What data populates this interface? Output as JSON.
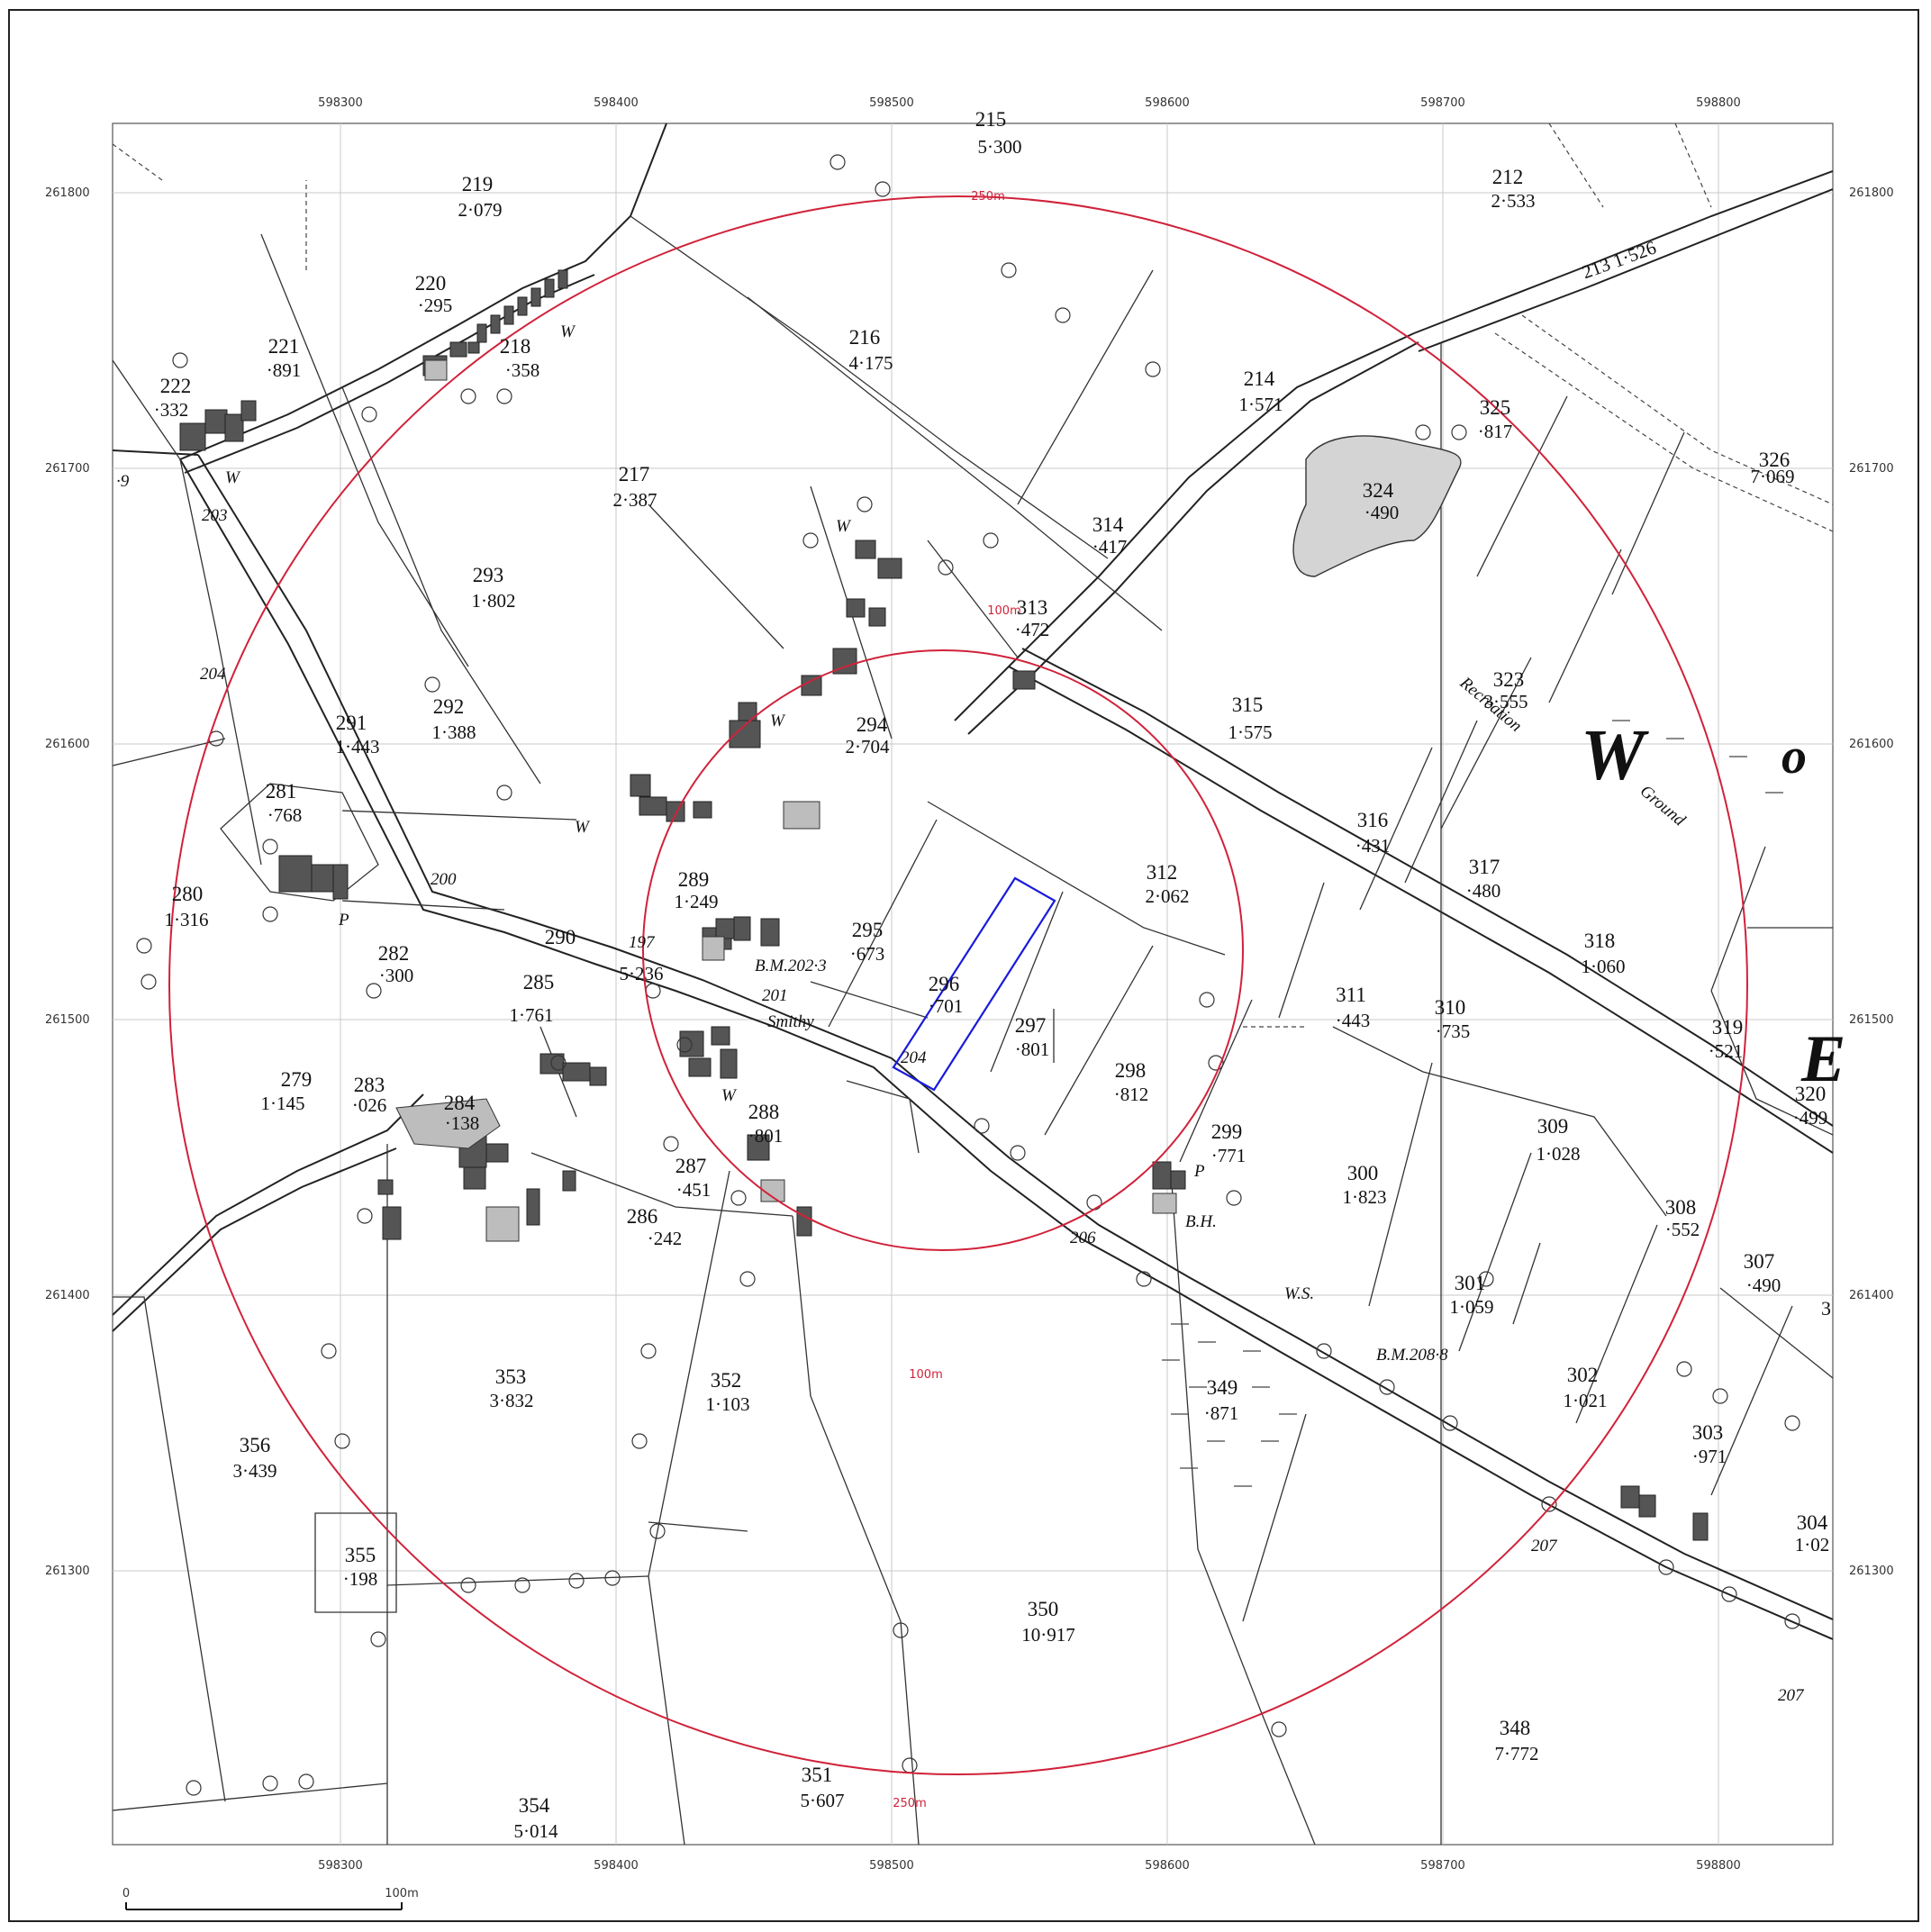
{
  "map": {
    "grid_x_labels": [
      "598300",
      "598400",
      "598500",
      "598600",
      "598700",
      "598800"
    ],
    "grid_y_labels": [
      "261800",
      "261700",
      "261600",
      "261500",
      "261400",
      "261300"
    ],
    "ring_colour": "#d0223a",
    "site_colour": "#1a1adb",
    "ring_labels": {
      "inner_top": "100m",
      "inner_bottom": "100m",
      "outer_top": "250m",
      "outer_bottom": "250m"
    },
    "scale_bar": {
      "start": "0",
      "end": "100m"
    },
    "parcels": [
      {
        "n": "219",
        "a": "2·079"
      },
      {
        "n": "220",
        "a": "·295"
      },
      {
        "n": "221",
        "a": "·891"
      },
      {
        "n": "222",
        "a": "·332"
      },
      {
        "n": "218",
        "a": "·358"
      },
      {
        "n": "216",
        "a": "4·175"
      },
      {
        "n": "214",
        "a": "1·571"
      },
      {
        "n": "212",
        "a": "2·533"
      },
      {
        "n": "325",
        "a": "·817"
      },
      {
        "n": "326",
        "a": "7·069"
      },
      {
        "n": "324",
        "a": "·490"
      },
      {
        "n": "217",
        "a": "2·387"
      },
      {
        "n": "314",
        "a": "·417"
      },
      {
        "n": "313",
        "a": "·472"
      },
      {
        "n": "293",
        "a": "1·802"
      },
      {
        "n": "292",
        "a": "1·388"
      },
      {
        "n": "291",
        "a": "1·443"
      },
      {
        "n": "281",
        "a": "·768"
      },
      {
        "n": "280",
        "a": "1·316"
      },
      {
        "n": "294",
        "a": "2·704"
      },
      {
        "n": "315",
        "a": "1·575"
      },
      {
        "n": "323",
        "a": "3·555"
      },
      {
        "n": "289",
        "a": "1·249"
      },
      {
        "n": "295",
        "a": "·673"
      },
      {
        "n": "296",
        "a": "·701"
      },
      {
        "n": "297",
        "a": "·801"
      },
      {
        "n": "312",
        "a": "2·062"
      },
      {
        "n": "316",
        "a": "·431"
      },
      {
        "n": "317",
        "a": "·480"
      },
      {
        "n": "318",
        "a": "1·060"
      },
      {
        "n": "282",
        "a": "·300"
      },
      {
        "n": "290",
        "a": "5·236"
      },
      {
        "n": "285",
        "a": "1·761"
      },
      {
        "n": "311",
        "a": "·443"
      },
      {
        "n": "310",
        "a": "·735"
      },
      {
        "n": "319",
        "a": "·521"
      },
      {
        "n": "279",
        "a": "1·145"
      },
      {
        "n": "283",
        "a": "·026"
      },
      {
        "n": "284",
        "a": "·138"
      },
      {
        "n": "298",
        "a": "·812"
      },
      {
        "n": "288",
        "a": "·801"
      },
      {
        "n": "299",
        "a": "·771"
      },
      {
        "n": "320",
        "a": "·499"
      },
      {
        "n": "309",
        "a": "1·028"
      },
      {
        "n": "287",
        "a": "·451"
      },
      {
        "n": "300",
        "a": "1·823"
      },
      {
        "n": "286",
        "a": "·242"
      },
      {
        "n": "308",
        "a": "·552"
      },
      {
        "n": "307",
        "a": "·490"
      },
      {
        "n": "301",
        "a": "1·059"
      },
      {
        "n": "353",
        "a": "3·832"
      },
      {
        "n": "352",
        "a": "1·103"
      },
      {
        "n": "349",
        "a": "·871"
      },
      {
        "n": "302",
        "a": "1·021"
      },
      {
        "n": "356",
        "a": "3·439"
      },
      {
        "n": "303",
        "a": "·971"
      },
      {
        "n": "304",
        "a": "1·02"
      },
      {
        "n": "355",
        "a": "·198"
      },
      {
        "n": "350",
        "a": "10·917"
      },
      {
        "n": "348",
        "a": "7·772"
      },
      {
        "n": "351",
        "a": "5·607"
      },
      {
        "n": "354",
        "a": "5·014"
      },
      {
        "n": "215",
        "a": "5·300"
      }
    ],
    "road_label_213": "213  1·526",
    "spot_heights": [
      "203",
      "204",
      "200",
      "197",
      "201",
      "204",
      "206",
      "207",
      "207",
      "·9"
    ],
    "benchmarks": [
      "B.M.202·3",
      "B.M.208·8"
    ],
    "text_labels": {
      "smithy": "Smithy",
      "bh": "B.H.",
      "recreation": "Recreation",
      "ground": "Ground",
      "big_w": "W",
      "big_o": "o",
      "big_e": "E",
      "well": "W",
      "pump": "P",
      "ws": "W.S.",
      "figure_3": "3"
    }
  }
}
